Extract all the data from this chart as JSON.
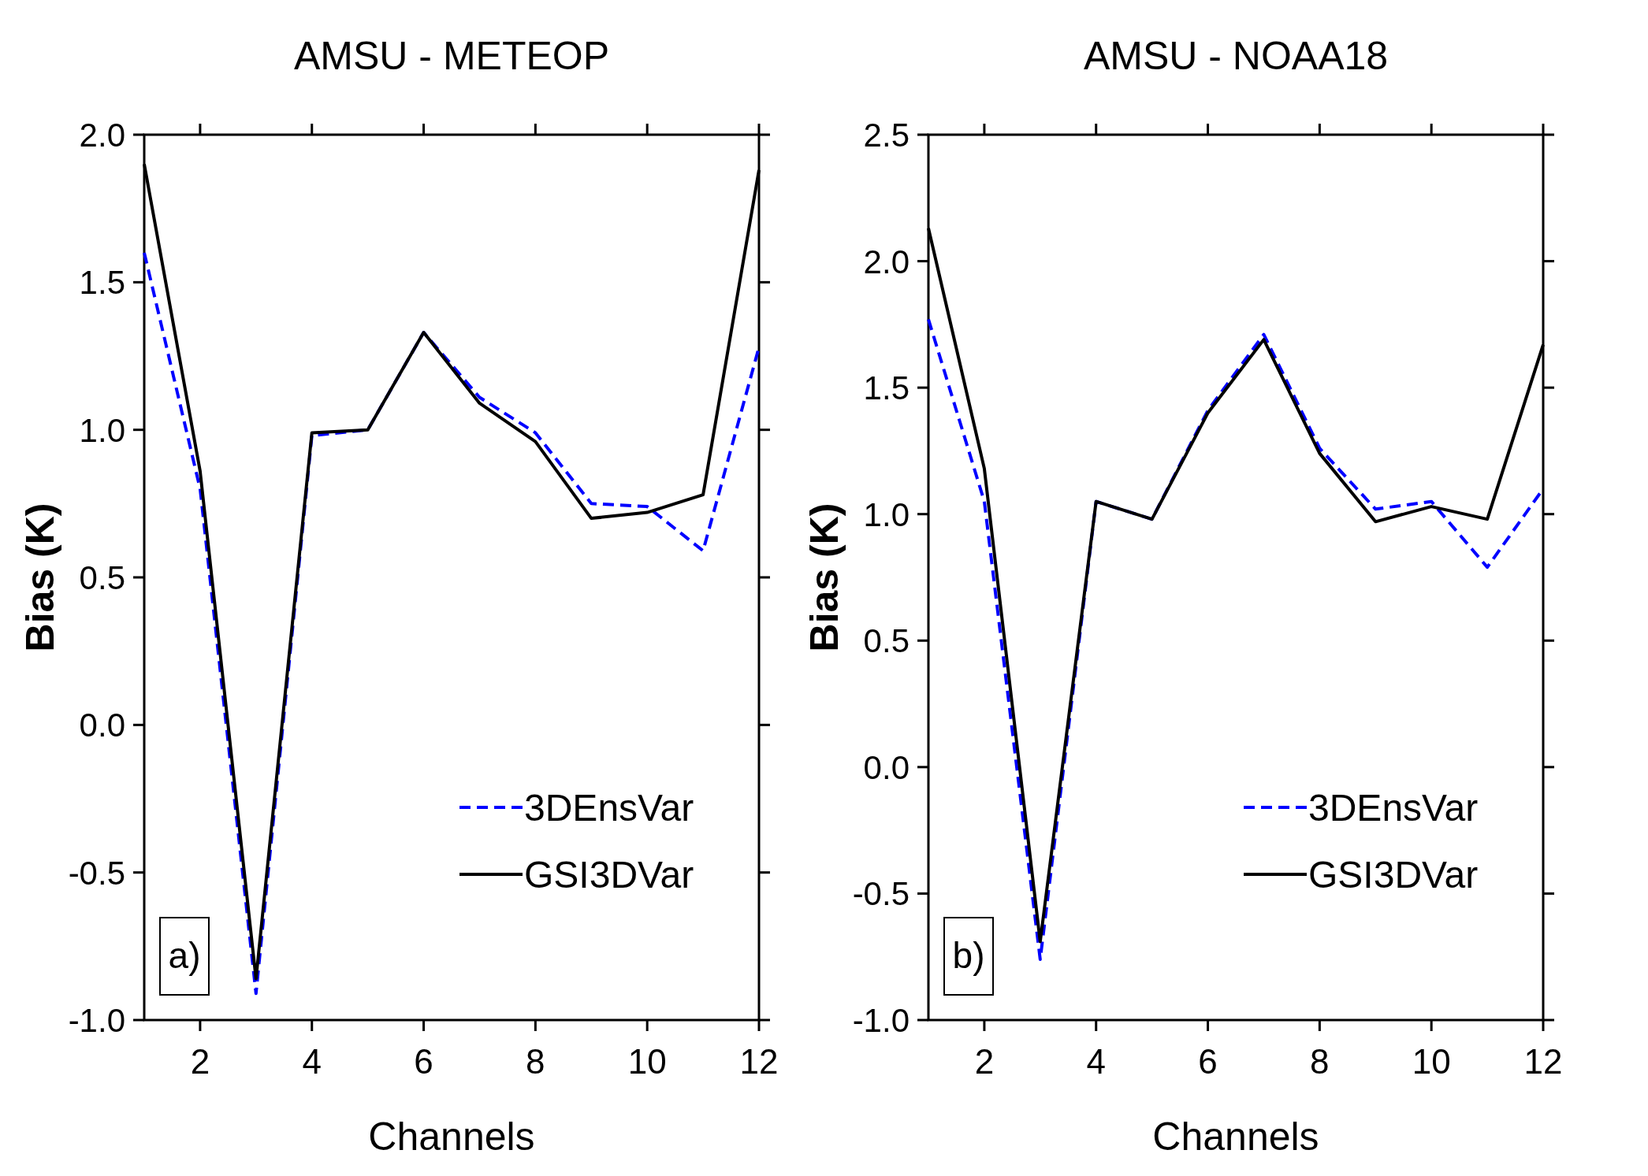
{
  "chart_data": [
    {
      "type": "line",
      "title": "AMSU - METEOP",
      "xlabel": "Channels",
      "ylabel": "Bias (K)",
      "x": [
        1,
        2,
        3,
        4,
        5,
        6,
        7,
        8,
        9,
        10,
        11,
        12
      ],
      "xlim": [
        1,
        12
      ],
      "xticks": [
        2,
        4,
        6,
        8,
        10,
        12
      ],
      "ylim": [
        -1.0,
        2.0
      ],
      "yticks": [
        {
          "value": -1,
          "label": "-1.0"
        },
        {
          "value": -0.5,
          "label": "-0.5"
        },
        {
          "value": 0,
          "label": "0.0"
        },
        {
          "value": 0.5,
          "label": "0.5"
        },
        {
          "value": 1,
          "label": "1.0"
        },
        {
          "value": 1.5,
          "label": "1.5"
        },
        {
          "value": 2,
          "label": "2.0"
        }
      ],
      "legend": "bottom right",
      "annotations": [
        "a)"
      ],
      "series": [
        {
          "name": "3DEnsVar",
          "color": "#0000ff",
          "line_style": "dashed",
          "values": [
            1.6,
            0.8,
            -0.91,
            0.98,
            1.0,
            1.33,
            1.11,
            0.99,
            0.75,
            0.74,
            0.59,
            1.28
          ]
        },
        {
          "name": "GSI3DVar",
          "color": "#000000",
          "line_style": "solid",
          "values": [
            1.9,
            0.86,
            -0.86,
            0.99,
            1.0,
            1.33,
            1.09,
            0.96,
            0.7,
            0.72,
            0.78,
            1.88
          ]
        }
      ]
    },
    {
      "type": "line",
      "title": "AMSU - NOAA18",
      "xlabel": "Channels",
      "ylabel": "Bias (K)",
      "x": [
        1,
        2,
        3,
        4,
        5,
        6,
        7,
        8,
        9,
        10,
        11,
        12
      ],
      "xlim": [
        1,
        12
      ],
      "xticks": [
        2,
        4,
        6,
        8,
        10,
        12
      ],
      "ylim": [
        -1.0,
        2.5
      ],
      "yticks": [
        {
          "value": -1,
          "label": "-1.0"
        },
        {
          "value": -0.5,
          "label": "-0.5"
        },
        {
          "value": 0,
          "label": "0.0"
        },
        {
          "value": 0.5,
          "label": "0.5"
        },
        {
          "value": 1,
          "label": "1.0"
        },
        {
          "value": 1.5,
          "label": "1.5"
        },
        {
          "value": 2,
          "label": "2.0"
        },
        {
          "value": 2.5,
          "label": "2.5"
        }
      ],
      "legend": "bottom right",
      "annotations": [
        "b)"
      ],
      "series": [
        {
          "name": "3DEnsVar",
          "color": "#0000ff",
          "line_style": "dashed",
          "values": [
            1.77,
            1.05,
            -0.76,
            1.05,
            0.98,
            1.41,
            1.71,
            1.26,
            1.02,
            1.05,
            0.79,
            1.1
          ]
        },
        {
          "name": "GSI3DVar",
          "color": "#000000",
          "line_style": "solid",
          "values": [
            2.13,
            1.18,
            -0.69,
            1.05,
            0.98,
            1.4,
            1.69,
            1.24,
            0.97,
            1.03,
            0.98,
            1.67
          ]
        }
      ]
    }
  ]
}
